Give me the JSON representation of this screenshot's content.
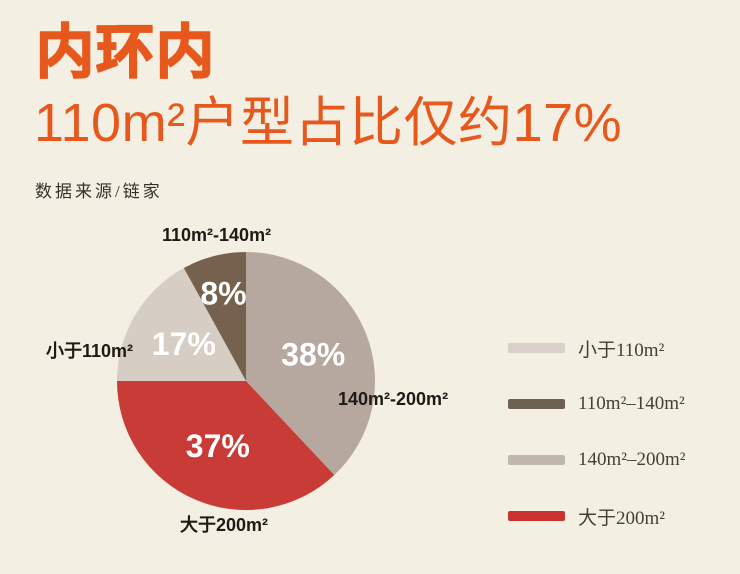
{
  "header": {
    "title": "内环内",
    "subtitle": "110m²户型占比仅约17%",
    "source": "数据来源/链家"
  },
  "chart_data": {
    "type": "pie",
    "title": "内环内 110m²户型占比仅约17%",
    "unit": "%",
    "direction": "clockwise",
    "start_angle_deg": 0,
    "legend_position": "right",
    "slices": [
      {
        "label": "140m²-200m²",
        "value": 38,
        "pct_label": "38%",
        "color": "#b6a89e",
        "label_r": 0.56
      },
      {
        "label": "大于200m²",
        "value": 37,
        "pct_label": "37%",
        "color": "#c93b36",
        "label_r": 0.55
      },
      {
        "label": "小于110m²",
        "value": 17,
        "pct_label": "17%",
        "color": "#d6cdc4",
        "label_r": 0.56
      },
      {
        "label": "110m²-140m²",
        "value": 8,
        "pct_label": "8%",
        "color": "#76614f",
        "label_r": 0.7
      }
    ]
  },
  "legend": {
    "items": [
      {
        "label": "小于110m²",
        "color": "#d9d1c9"
      },
      {
        "label": "110m²–140m²",
        "color": "#6e6052"
      },
      {
        "label": "140m²–200m²",
        "color": "#c2b7ae"
      },
      {
        "label": "大于200m²",
        "color": "#cb342e"
      }
    ]
  },
  "colors": {
    "background": "#f3efe2",
    "accent": "#e7581d",
    "slice_label_text": "#1e1a15",
    "legend_text": "#454035",
    "percent_text": "#ffffff"
  }
}
